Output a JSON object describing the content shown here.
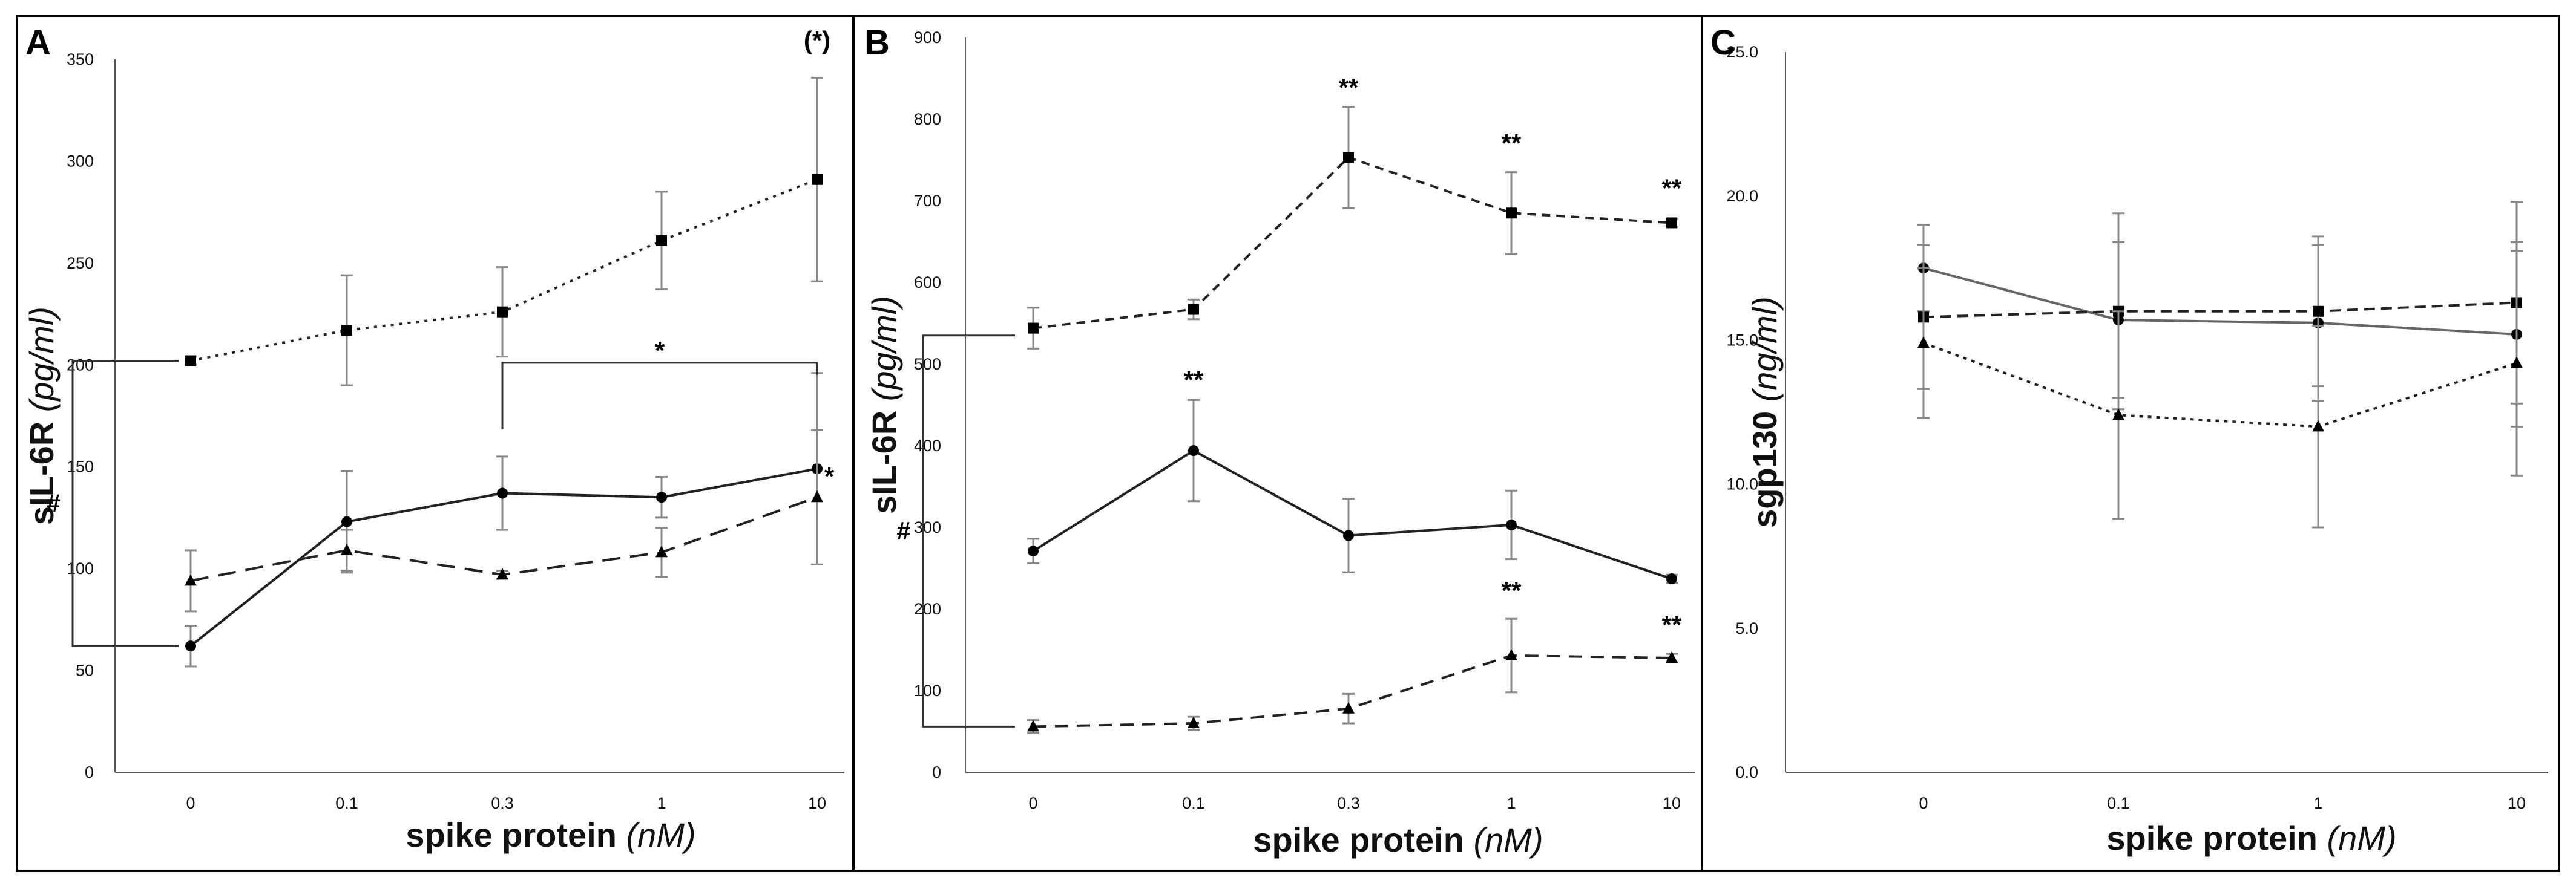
{
  "chart_data": [
    {
      "panel_label": "A",
      "type": "line",
      "categories": [
        "0",
        "0.1",
        "0.3",
        "1",
        "10"
      ],
      "ylabel": "sIL-6R",
      "ylabel_unit": "(pg/ml)",
      "xlabel": "spike protein",
      "xlabel_unit": "(nM)",
      "ylim": [
        0,
        350
      ],
      "yticks": [
        0,
        50,
        100,
        150,
        200,
        250,
        300,
        350
      ],
      "ytick_labels": [
        "0",
        "50",
        "100",
        "150",
        "200",
        "250",
        "300",
        "350"
      ],
      "series": [
        {
          "marker": "square",
          "line_style": "dotted",
          "values": [
            202,
            217,
            226,
            261,
            291
          ],
          "errors": [
            2,
            27,
            22,
            24,
            50
          ]
        },
        {
          "marker": "circle",
          "line_style": "solid",
          "values": [
            62,
            123,
            137,
            135,
            149
          ],
          "errors": [
            10,
            25,
            18,
            10,
            47
          ]
        },
        {
          "marker": "triangle",
          "line_style": "dashed",
          "values": [
            94,
            109,
            97,
            108,
            135
          ],
          "errors": [
            15,
            10,
            2,
            12,
            33
          ]
        }
      ],
      "annotations": [
        {
          "text": "(*)",
          "category": "10",
          "y": 355
        },
        {
          "text": "*",
          "category": "10",
          "y": 141
        },
        {
          "text": "*",
          "kind": "bracket",
          "from": "0.3",
          "to": "10",
          "y": 201
        },
        {
          "text": "#",
          "kind": "bracket-vertical",
          "from_y": 62,
          "to_y": 202
        }
      ]
    },
    {
      "panel_label": "B",
      "type": "line",
      "categories": [
        "0",
        "0.1",
        "0.3",
        "1",
        "10"
      ],
      "ylabel": "sIL-6R",
      "ylabel_unit": "(pg/ml)",
      "xlabel": "spike protein",
      "xlabel_unit": "(nM)",
      "ylim": [
        0,
        900
      ],
      "yticks": [
        0,
        100,
        200,
        300,
        400,
        500,
        600,
        700,
        800,
        900
      ],
      "ytick_labels": [
        "0",
        "100",
        "200",
        "300",
        "400",
        "500",
        "600",
        "700",
        "800",
        "900"
      ],
      "series": [
        {
          "marker": "square",
          "line_style": "dashed",
          "values": [
            544,
            567,
            753,
            685,
            673
          ],
          "errors": [
            25,
            12,
            62,
            50,
            5
          ]
        },
        {
          "marker": "circle",
          "line_style": "solid",
          "values": [
            271,
            394,
            290,
            303,
            237
          ],
          "errors": [
            15,
            62,
            45,
            42,
            5
          ]
        },
        {
          "marker": "triangle",
          "line_style": "dashed",
          "values": [
            56,
            60,
            78,
            143,
            140
          ],
          "errors": [
            8,
            8,
            18,
            45,
            5
          ]
        }
      ],
      "annotations": [
        {
          "text": "**",
          "category": "0.3",
          "y": 828
        },
        {
          "text": "**",
          "category": "1",
          "y": 760
        },
        {
          "text": "**",
          "category": "10",
          "y": 705
        },
        {
          "text": "**",
          "category": "0.1",
          "y": 470
        },
        {
          "text": "**",
          "category": "1",
          "y": 212
        },
        {
          "text": "**",
          "category": "10",
          "y": 170
        },
        {
          "text": "#",
          "kind": "bracket-vertical",
          "from_y": 56,
          "to_y": 535
        }
      ]
    },
    {
      "panel_label": "C",
      "type": "line",
      "categories": [
        "0",
        "0.1",
        "1",
        "10"
      ],
      "ylabel": "sgp130",
      "ylabel_unit": "(ng/ml)",
      "xlabel": "spike protein",
      "xlabel_unit": "(nM)",
      "ylim": [
        0,
        25
      ],
      "yticks": [
        0,
        5,
        10,
        15,
        20,
        25
      ],
      "ytick_labels": [
        "0.0",
        "5.0",
        "10.0",
        "15.0",
        "20.0",
        "25.0"
      ],
      "series": [
        {
          "marker": "circle",
          "line_style": "solid",
          "values": [
            17.5,
            15.7,
            15.6,
            15.2
          ],
          "errors": [
            1.5,
            2.7,
            2.7,
            3.2
          ]
        },
        {
          "marker": "square",
          "line_style": "dashed",
          "values": [
            15.8,
            16.0,
            16.0,
            16.3
          ],
          "errors": [
            2.5,
            3.4,
            2.6,
            3.5
          ]
        },
        {
          "marker": "triangle",
          "line_style": "dotted",
          "values": [
            14.9,
            12.4,
            12.0,
            14.2
          ],
          "errors": [
            2.6,
            3.6,
            3.5,
            3.9
          ]
        }
      ],
      "annotations": []
    }
  ]
}
